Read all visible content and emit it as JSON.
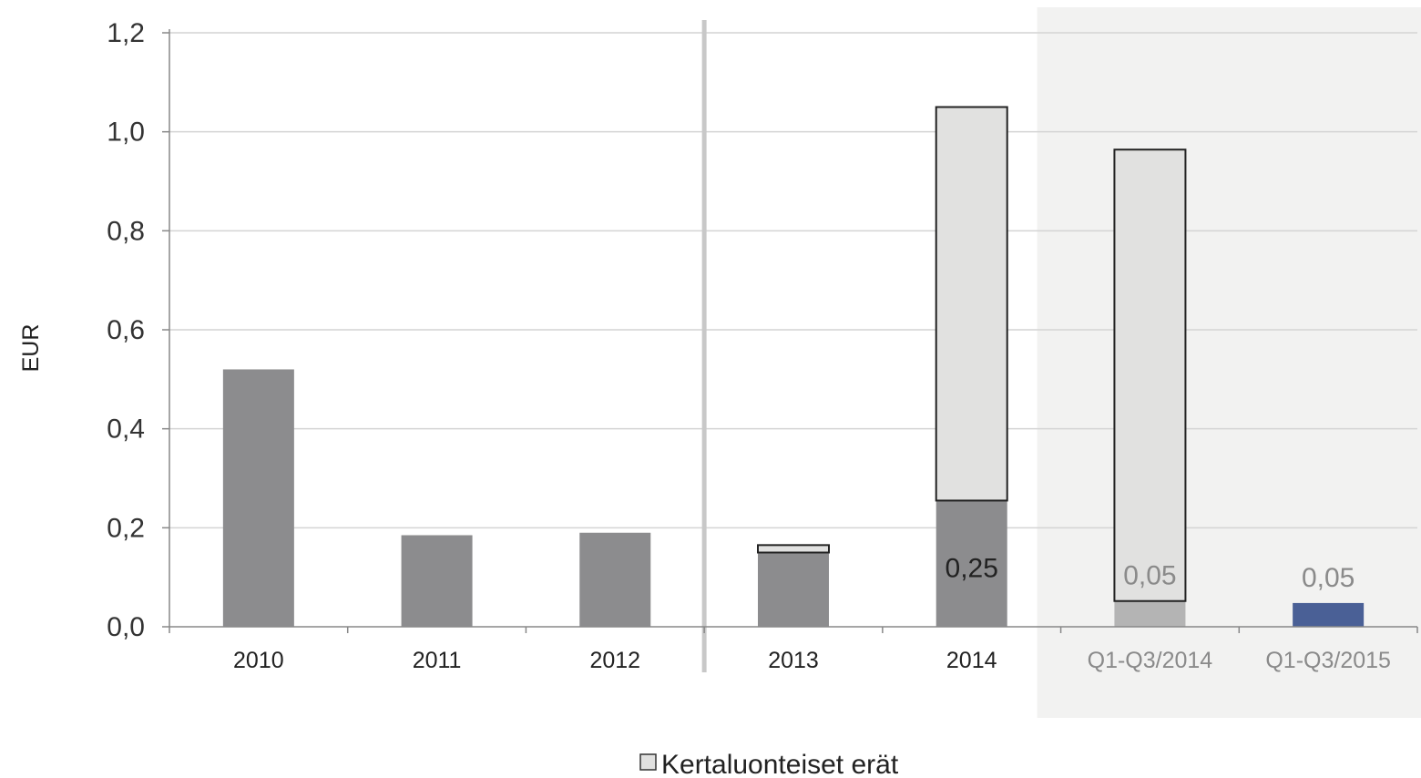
{
  "chart_data": {
    "type": "bar",
    "stacked": true,
    "ylabel": "EUR",
    "ylim": [
      0,
      1.2
    ],
    "yticks": [
      "0,0",
      "0,2",
      "0,4",
      "0,6",
      "0,8",
      "1,0",
      "1,2"
    ],
    "grid": true,
    "categories": [
      "2010",
      "2011",
      "2012",
      "2013",
      "2014",
      "Q1-Q3/2014",
      "Q1-Q3/2015"
    ],
    "series": [
      {
        "values": [
          0.52,
          0.185,
          0.19,
          0.15,
          0.255,
          0.052,
          0.048
        ],
        "colors": [
          "#8c8c8e",
          "#8c8c8e",
          "#8c8c8e",
          "#8c8c8e",
          "#8c8c8e",
          "#b4b4b4",
          "#4a6096"
        ]
      },
      {
        "name": "Kertaluonteiset erät",
        "values": [
          0,
          0,
          0,
          0.015,
          0.795,
          0.912,
          0
        ],
        "color": "#e1e1e0"
      }
    ],
    "data_labels": [
      "",
      "",
      "",
      "",
      "0,25",
      "0,05",
      "0,05"
    ],
    "legend": {
      "position": "bottom",
      "entries": [
        "Kertaluonteiset erät"
      ]
    },
    "highlight_region": {
      "categories": [
        "Q1-Q3/2014",
        "Q1-Q3/2015"
      ],
      "color": "#f2f2f1"
    },
    "separator_after": "2012"
  }
}
